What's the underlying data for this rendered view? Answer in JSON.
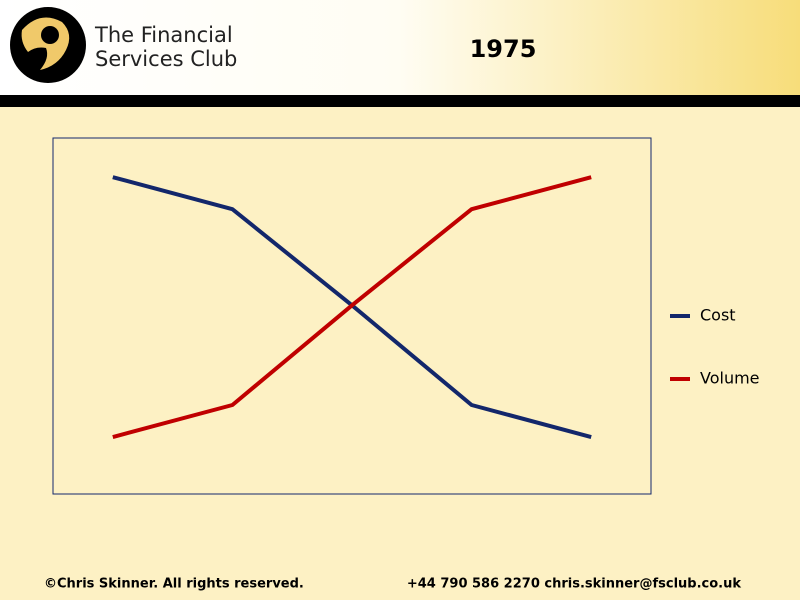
{
  "header": {
    "brand": [
      "The Financial",
      "Services Club"
    ]
  },
  "chart_data": {
    "type": "line",
    "title": "1975",
    "categories": [
      null,
      null,
      null,
      null,
      null
    ],
    "series": [
      {
        "name": "Cost",
        "color": "#13276b",
        "values": [
          8.9,
          8.0,
          5.3,
          2.5,
          1.6
        ]
      },
      {
        "name": "Volume",
        "color": "#c00000",
        "values": [
          1.6,
          2.5,
          5.3,
          8.0,
          8.9
        ]
      }
    ],
    "ylim": [
      0,
      10
    ],
    "legend": "right"
  },
  "footer": {
    "copyright": "©Chris Skinner. All rights reserved.",
    "contact": "+44 790 586 2270 chris.skinner@fsclub.co.uk"
  }
}
